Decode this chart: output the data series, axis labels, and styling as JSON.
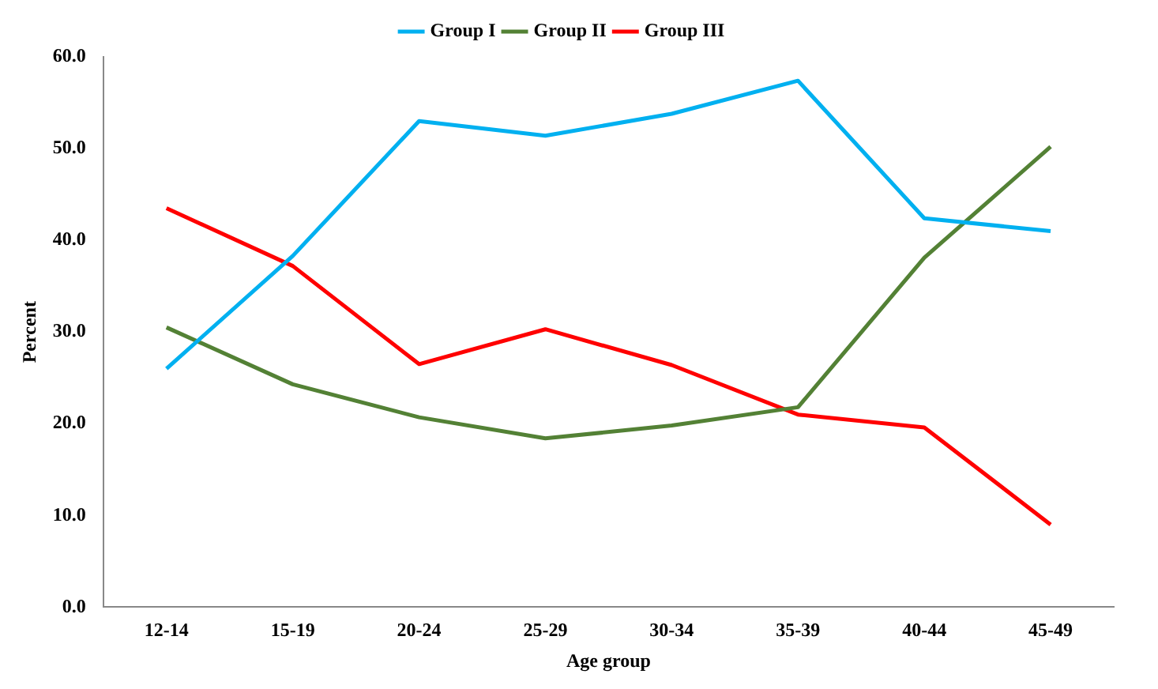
{
  "chart_data": {
    "type": "line",
    "xlabel": "Age group",
    "ylabel": "Percent",
    "categories": [
      "12-14",
      "15-19",
      "20-24",
      "25-29",
      "30-34",
      "35-39",
      "40-44",
      "45-49"
    ],
    "series": [
      {
        "name": "Group I",
        "color": "#00b0f0",
        "values": [
          26.0,
          38.3,
          53.0,
          51.4,
          53.8,
          57.4,
          42.4,
          41.0
        ]
      },
      {
        "name": "Group II",
        "color": "#538135",
        "values": [
          30.5,
          24.3,
          20.7,
          18.4,
          19.8,
          21.8,
          38.1,
          50.2
        ]
      },
      {
        "name": "Group III",
        "color": "#ff0000",
        "values": [
          43.5,
          37.2,
          26.5,
          30.3,
          26.4,
          21.0,
          19.6,
          9.0
        ]
      }
    ],
    "ylim": [
      0,
      60
    ],
    "yticks": [
      {
        "value": 0,
        "label": "0.0"
      },
      {
        "value": 10,
        "label": "10.0"
      },
      {
        "value": 20,
        "label": "20.0"
      },
      {
        "value": 30,
        "label": "30.0"
      },
      {
        "value": 40,
        "label": "40.0"
      },
      {
        "value": 50,
        "label": "50.0"
      },
      {
        "value": 60,
        "label": "60.0"
      }
    ],
    "grid": false,
    "legend": "top",
    "marker": "none",
    "line_style": "solid"
  }
}
